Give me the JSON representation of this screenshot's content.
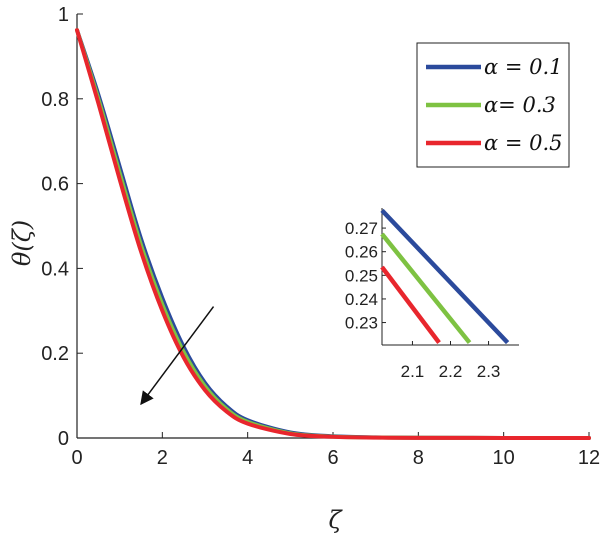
{
  "chart_data": {
    "type": "line",
    "title": "",
    "xlabel": "ζ",
    "ylabel": "θ(ζ)",
    "xlim": [
      0,
      12
    ],
    "ylim": [
      0,
      1
    ],
    "xticks": [
      "0",
      "2",
      "4",
      "6",
      "8",
      "10",
      "12"
    ],
    "yticks": [
      "0",
      "0.2",
      "0.4",
      "0.6",
      "0.8",
      "1"
    ],
    "grid": false,
    "legend_position": "top-right",
    "series": [
      {
        "name": "α = 0.1",
        "color": "#2b4a9c",
        "x": [
          0,
          0.5,
          1,
          1.5,
          2,
          2.5,
          3,
          3.5,
          4,
          5,
          6,
          7,
          8,
          10,
          12
        ],
        "y": [
          0.962,
          0.81,
          0.64,
          0.47,
          0.33,
          0.215,
          0.13,
          0.075,
          0.042,
          0.013,
          0.004,
          0.0015,
          0.0006,
          0.0001,
          0
        ]
      },
      {
        "name": "α= 0.3",
        "color": "#7ec242",
        "x": [
          0,
          0.5,
          1,
          1.5,
          2,
          2.5,
          3,
          3.5,
          4,
          5,
          6,
          7,
          8,
          10,
          12
        ],
        "y": [
          0.962,
          0.8,
          0.625,
          0.455,
          0.315,
          0.203,
          0.122,
          0.069,
          0.038,
          0.011,
          0.0033,
          0.0012,
          0.0005,
          0.0001,
          0
        ]
      },
      {
        "name": "α = 0.5",
        "color": "#e8262d",
        "x": [
          0,
          0.5,
          1,
          1.5,
          2,
          2.5,
          3,
          3.5,
          4,
          5,
          6,
          7,
          8,
          10,
          12
        ],
        "y": [
          0.962,
          0.79,
          0.61,
          0.44,
          0.3,
          0.19,
          0.113,
          0.063,
          0.034,
          0.0095,
          0.0028,
          0.001,
          0.0004,
          0.0001,
          0
        ]
      }
    ],
    "annotations": [
      {
        "type": "arrow",
        "from": [
          3.2,
          0.31
        ],
        "to": [
          1.5,
          0.08
        ]
      }
    ],
    "inset": {
      "xlim": [
        2.02,
        2.38
      ],
      "ylim": [
        0.2205,
        0.2785
      ],
      "xticks": [
        "2.1",
        "2.2",
        "2.3"
      ],
      "yticks": [
        "0.23",
        "0.24",
        "0.25",
        "0.26",
        "0.27"
      ],
      "series": [
        {
          "color": "#2b4a9c",
          "x": [
            2.02,
            2.35
          ],
          "y": [
            0.2775,
            0.2215
          ]
        },
        {
          "color": "#7ec242",
          "x": [
            2.02,
            2.25
          ],
          "y": [
            0.2675,
            0.2215
          ]
        },
        {
          "color": "#e8262d",
          "x": [
            2.02,
            2.17
          ],
          "y": [
            0.2535,
            0.2215
          ]
        }
      ]
    }
  }
}
